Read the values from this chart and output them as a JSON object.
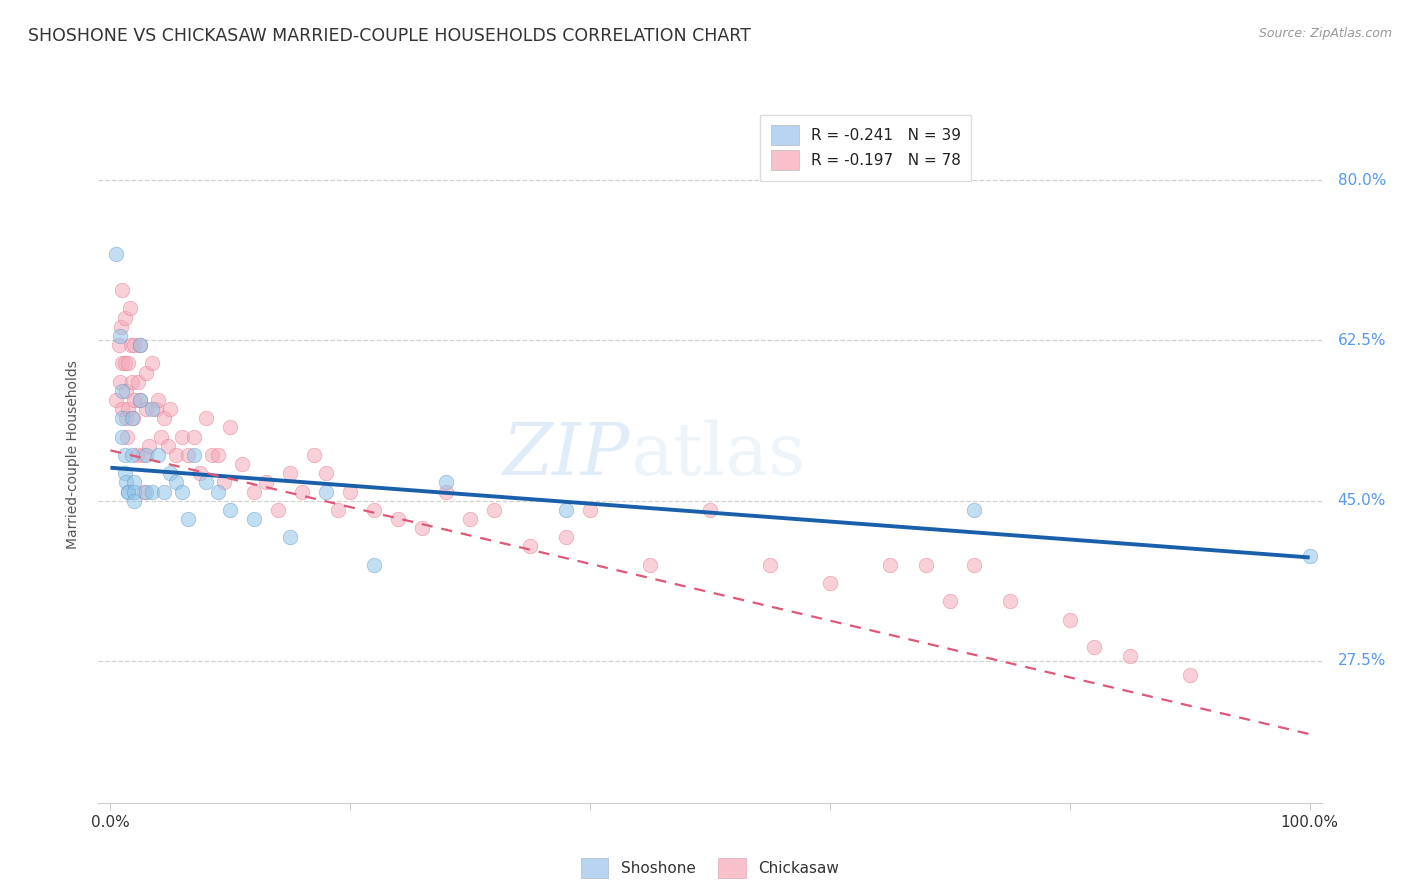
{
  "title": "SHOSHONE VS CHICKASAW MARRIED-COUPLE HOUSEHOLDS CORRELATION CHART",
  "source_text": "Source: ZipAtlas.com",
  "ylabel": "Married-couple Households",
  "ytick_labels": [
    "80.0%",
    "62.5%",
    "45.0%",
    "27.5%"
  ],
  "ytick_values": [
    0.8,
    0.625,
    0.45,
    0.275
  ],
  "xtick_values": [
    0.0,
    0.2,
    0.4,
    0.6,
    0.8,
    1.0
  ],
  "xtick_labels": [
    "0.0%",
    "",
    "",
    "",
    "",
    "100.0%"
  ],
  "legend_entries": [
    {
      "label": "R = -0.241   N = 39",
      "color": "#b8d4f0"
    },
    {
      "label": "R = -0.197   N = 78",
      "color": "#f7c0cb"
    }
  ],
  "legend_bottom": [
    {
      "label": "Shoshone",
      "color": "#b8d4f0"
    },
    {
      "label": "Chickasaw",
      "color": "#f7c0cb"
    }
  ],
  "watermark_zip": "ZIP",
  "watermark_atlas": "atlas",
  "shoshone_x": [
    0.005,
    0.008,
    0.01,
    0.01,
    0.01,
    0.012,
    0.012,
    0.013,
    0.015,
    0.015,
    0.018,
    0.018,
    0.02,
    0.02,
    0.02,
    0.025,
    0.025,
    0.03,
    0.03,
    0.035,
    0.035,
    0.04,
    0.045,
    0.05,
    0.055,
    0.06,
    0.065,
    0.07,
    0.08,
    0.09,
    0.1,
    0.12,
    0.15,
    0.18,
    0.22,
    0.28,
    0.38,
    0.72,
    1.0
  ],
  "shoshone_y": [
    0.72,
    0.63,
    0.57,
    0.54,
    0.52,
    0.5,
    0.48,
    0.47,
    0.46,
    0.46,
    0.54,
    0.5,
    0.47,
    0.46,
    0.45,
    0.62,
    0.56,
    0.5,
    0.46,
    0.55,
    0.46,
    0.5,
    0.46,
    0.48,
    0.47,
    0.46,
    0.43,
    0.5,
    0.47,
    0.46,
    0.44,
    0.43,
    0.41,
    0.46,
    0.38,
    0.47,
    0.44,
    0.44,
    0.39
  ],
  "chickasaw_x": [
    0.005,
    0.007,
    0.008,
    0.009,
    0.01,
    0.01,
    0.01,
    0.012,
    0.012,
    0.013,
    0.013,
    0.014,
    0.015,
    0.015,
    0.016,
    0.017,
    0.018,
    0.019,
    0.02,
    0.02,
    0.022,
    0.023,
    0.025,
    0.025,
    0.027,
    0.028,
    0.03,
    0.03,
    0.032,
    0.035,
    0.038,
    0.04,
    0.042,
    0.045,
    0.048,
    0.05,
    0.055,
    0.06,
    0.065,
    0.07,
    0.075,
    0.08,
    0.085,
    0.09,
    0.095,
    0.1,
    0.11,
    0.12,
    0.13,
    0.14,
    0.15,
    0.16,
    0.17,
    0.18,
    0.19,
    0.2,
    0.22,
    0.24,
    0.26,
    0.28,
    0.3,
    0.32,
    0.35,
    0.38,
    0.4,
    0.45,
    0.5,
    0.55,
    0.6,
    0.65,
    0.68,
    0.7,
    0.72,
    0.75,
    0.8,
    0.82,
    0.85,
    0.9
  ],
  "chickasaw_y": [
    0.56,
    0.62,
    0.58,
    0.64,
    0.68,
    0.6,
    0.55,
    0.65,
    0.6,
    0.57,
    0.54,
    0.52,
    0.6,
    0.55,
    0.66,
    0.62,
    0.58,
    0.54,
    0.62,
    0.56,
    0.5,
    0.58,
    0.62,
    0.56,
    0.5,
    0.46,
    0.59,
    0.55,
    0.51,
    0.6,
    0.55,
    0.56,
    0.52,
    0.54,
    0.51,
    0.55,
    0.5,
    0.52,
    0.5,
    0.52,
    0.48,
    0.54,
    0.5,
    0.5,
    0.47,
    0.53,
    0.49,
    0.46,
    0.47,
    0.44,
    0.48,
    0.46,
    0.5,
    0.48,
    0.44,
    0.46,
    0.44,
    0.43,
    0.42,
    0.46,
    0.43,
    0.44,
    0.4,
    0.41,
    0.44,
    0.38,
    0.44,
    0.38,
    0.36,
    0.38,
    0.38,
    0.34,
    0.38,
    0.34,
    0.32,
    0.29,
    0.28,
    0.26
  ],
  "shoshone_color": "#8ec4e8",
  "chickasaw_color": "#f5a8b8",
  "shoshone_edge": "#6090c0",
  "chickasaw_edge": "#e07088",
  "trendline_shoshone_color": "#1a5faa",
  "trendline_chickasaw_color": "#e05878",
  "background_color": "#ffffff",
  "grid_color": "#cccccc",
  "axis_color": "#cccccc",
  "title_color": "#333333",
  "ytick_color": "#5599ee",
  "marker_size": 110,
  "marker_alpha": 0.55,
  "trendline_shoshone_start_y": 0.486,
  "trendline_shoshone_end_y": 0.388,
  "trendline_chickasaw_start_y": 0.505,
  "trendline_chickasaw_end_y": 0.195
}
